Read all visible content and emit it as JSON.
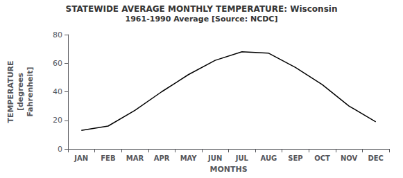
{
  "chart_data": {
    "type": "line",
    "title": "STATEWIDE AVERAGE MONTHLY TEMPERATURE: Wisconsin",
    "subtitle": "1961-1990 Average [Source: NCDC]",
    "categories": [
      "JAN",
      "FEB",
      "MAR",
      "APR",
      "MAY",
      "JUN",
      "JUL",
      "AUG",
      "SEP",
      "OCT",
      "NOV",
      "DEC"
    ],
    "values": [
      13,
      16,
      27,
      40,
      52,
      62,
      68,
      67,
      57,
      45,
      30,
      19
    ],
    "color": "#000000",
    "xlabel": "MONTHS",
    "ylabel": "TEMPERATURE\n[degrees\nFahrenheit]",
    "ylim": [
      0,
      80
    ],
    "yticks": [
      0,
      20,
      40,
      60,
      80
    ],
    "grid": false
  }
}
